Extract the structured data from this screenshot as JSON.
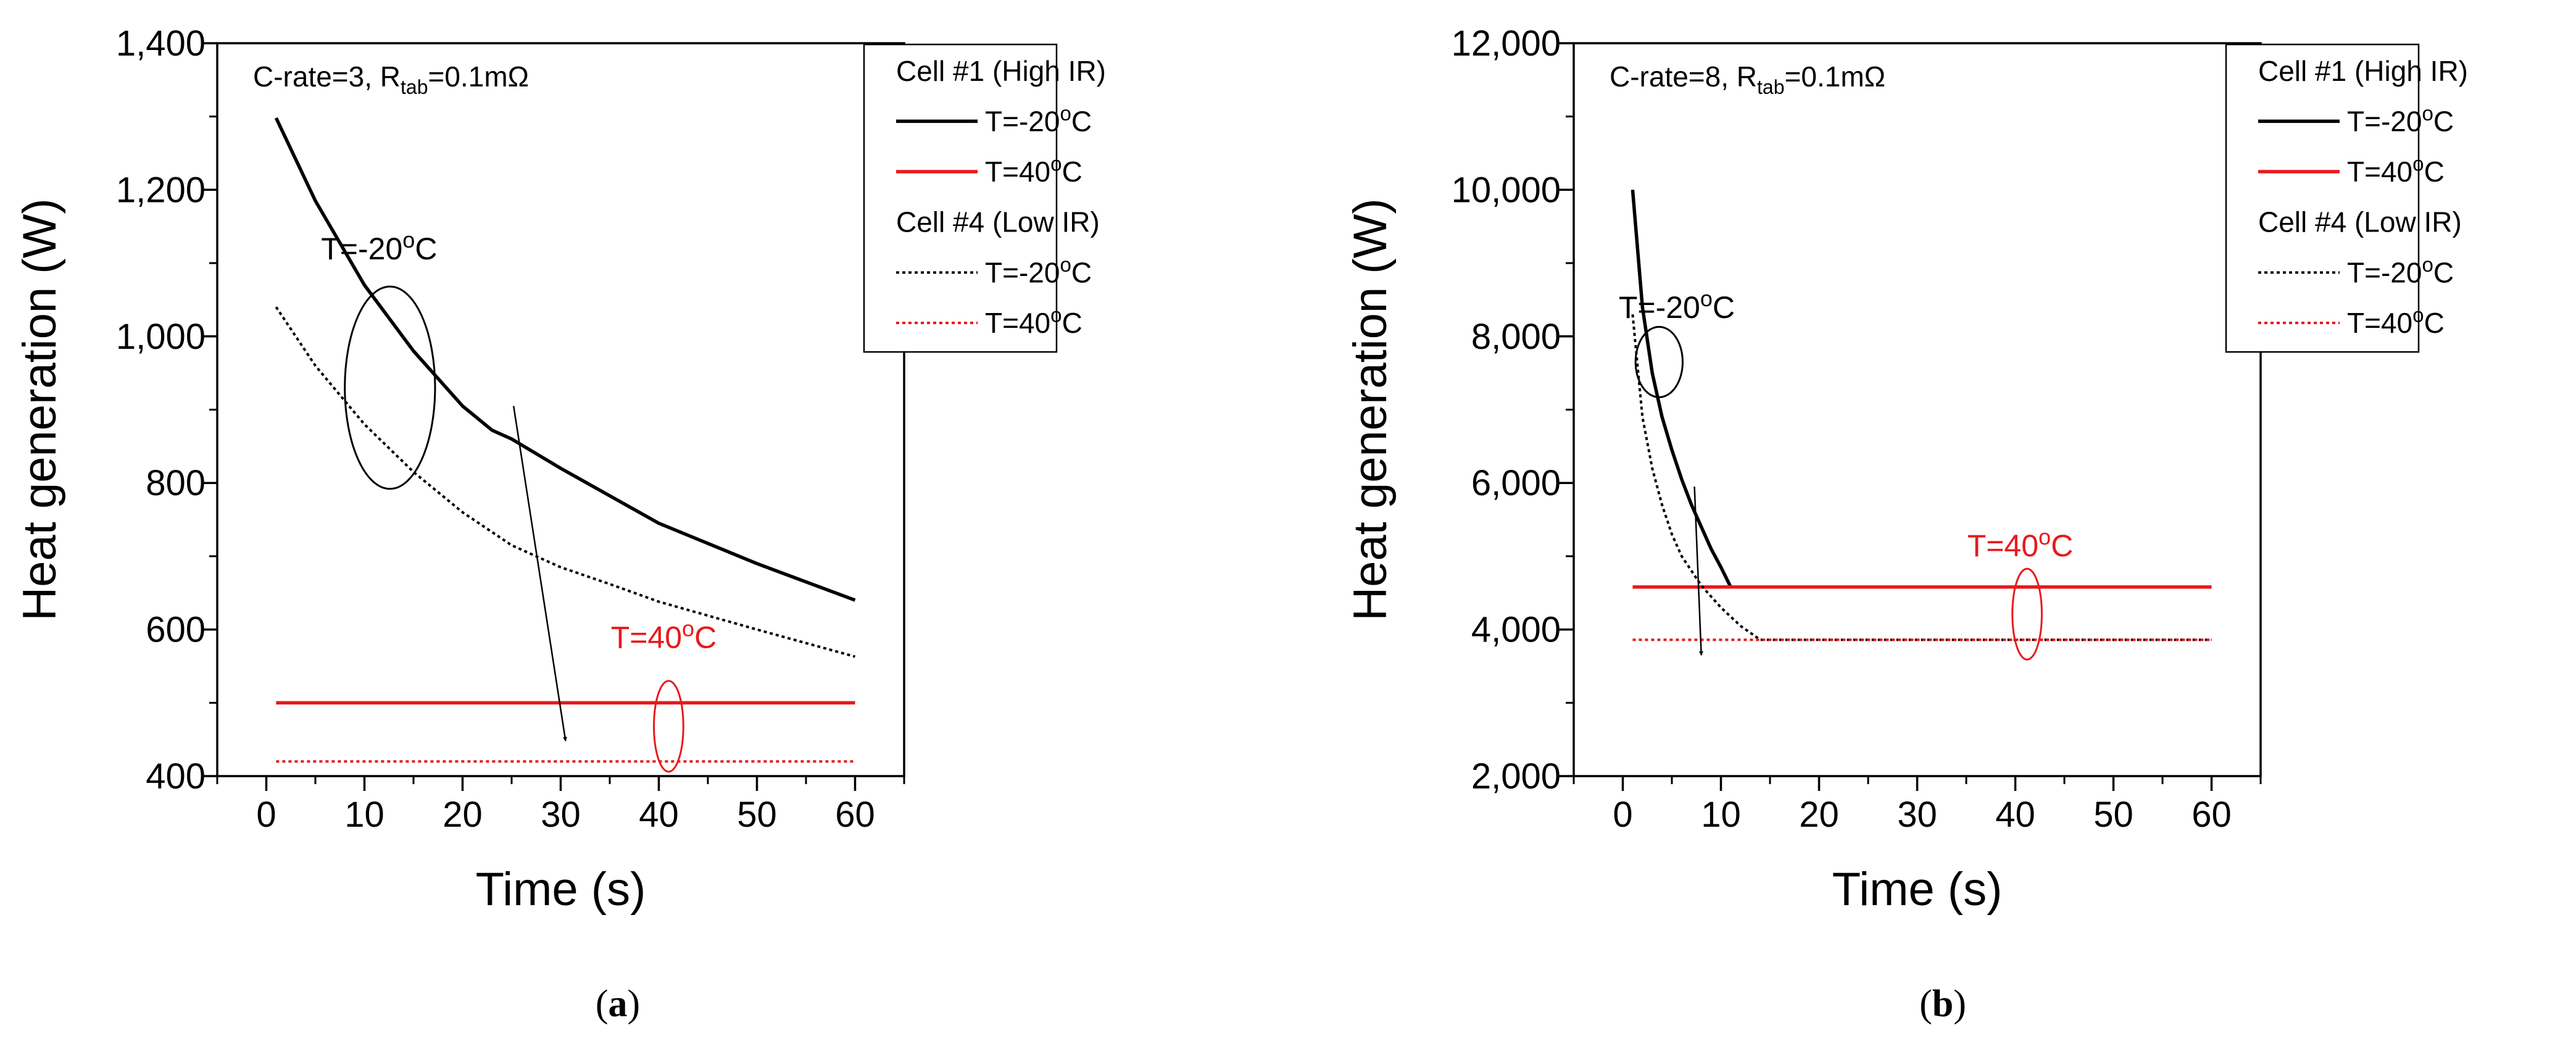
{
  "chart_data": [
    {
      "panel_label": "(a)",
      "panel_label_letter": "a",
      "type": "line",
      "xlabel": "Time (s)",
      "ylabel": "Heat generation (W)",
      "xlim": [
        -5,
        65
      ],
      "ylim": [
        400,
        1400
      ],
      "xticks": [
        0,
        10,
        20,
        30,
        40,
        50,
        60
      ],
      "yticks": [
        400,
        600,
        800,
        1000,
        1200,
        1400
      ],
      "ytick_labels": [
        "400",
        "600",
        "800",
        "1,000",
        "1,200",
        "1,400"
      ],
      "condition": {
        "prefix": "C-rate=3, R",
        "sub": "tab",
        "suffix": "=0.1mΩ"
      },
      "legend": [
        {
          "kind": "header",
          "text": "Cell #1 (High IR)"
        },
        {
          "kind": "entry",
          "series": 0,
          "text": "T=-20",
          "sup": "o",
          "unit": "C"
        },
        {
          "kind": "entry",
          "series": 1,
          "text": "T=40",
          "sup": "o",
          "unit": "C"
        },
        {
          "kind": "header",
          "text": "Cell #4 (Low IR)"
        },
        {
          "kind": "entry",
          "series": 2,
          "text": "T=-20",
          "sup": "o",
          "unit": "C"
        },
        {
          "kind": "entry",
          "series": 3,
          "text": "T=40",
          "sup": "o",
          "unit": "C"
        }
      ],
      "series": [
        {
          "name": "Cell #1 (High IR) T=-20°C",
          "color": "#000000",
          "style": "solid",
          "x": [
            1,
            5,
            10,
            15,
            20,
            23,
            25,
            30,
            40,
            50,
            60
          ],
          "y": [
            1298,
            1185,
            1070,
            980,
            905,
            872,
            860,
            820,
            745,
            690,
            640
          ]
        },
        {
          "name": "Cell #1 (High IR) T=40°C",
          "color": "#e8191c",
          "style": "solid",
          "x": [
            1,
            60
          ],
          "y": [
            500,
            500
          ]
        },
        {
          "name": "Cell #4 (Low IR) T=-20°C",
          "color": "#000000",
          "style": "dotted",
          "x": [
            1,
            5,
            10,
            15,
            20,
            25,
            30,
            35,
            40,
            50,
            60
          ],
          "y": [
            1040,
            960,
            880,
            815,
            760,
            715,
            685,
            662,
            638,
            600,
            563
          ]
        },
        {
          "name": "Cell #4 (Low IR) T=40°C",
          "color": "#e8191c",
          "style": "dotted",
          "x": [
            1,
            60
          ],
          "y": [
            420,
            420
          ]
        }
      ],
      "annotations": [
        {
          "text": "T=-20",
          "sup": "o",
          "unit": "C",
          "color": "#000000",
          "x": 11.5,
          "y": 1105
        },
        {
          "text": "T=40",
          "sup": "o",
          "unit": "C",
          "color": "#e8191c",
          "x": 40.5,
          "y": 575
        }
      ],
      "ellipses": [
        {
          "cx": 12.6,
          "cy": 930,
          "rx": 4.6,
          "ry": 138,
          "color": "#000000"
        },
        {
          "cx": 41,
          "cy": 468,
          "rx": 1.5,
          "ry": 62,
          "color": "#e8191c"
        }
      ],
      "arrows": [
        {
          "from": [
            25.2,
            905
          ],
          "to": [
            30.5,
            448
          ]
        }
      ]
    },
    {
      "panel_label": "(b)",
      "panel_label_letter": "b",
      "type": "line",
      "xlabel": "Time (s)",
      "ylabel": "Heat generation (W)",
      "xlim": [
        -5,
        65
      ],
      "ylim": [
        2000,
        12000
      ],
      "xticks": [
        0,
        10,
        20,
        30,
        40,
        50,
        60
      ],
      "yticks": [
        2000,
        4000,
        6000,
        8000,
        10000,
        12000
      ],
      "ytick_labels": [
        "2,000",
        "4,000",
        "6,000",
        "8,000",
        "10,000",
        "12,000"
      ],
      "condition": {
        "prefix": "C-rate=8, R",
        "sub": "tab",
        "suffix": "=0.1mΩ"
      },
      "legend": [
        {
          "kind": "header",
          "text": "Cell #1 (High IR)"
        },
        {
          "kind": "entry",
          "series": 0,
          "text": "T=-20",
          "sup": "o",
          "unit": "C"
        },
        {
          "kind": "entry",
          "series": 1,
          "text": "T=40",
          "sup": "o",
          "unit": "C"
        },
        {
          "kind": "header",
          "text": "Cell #4 (Low IR)"
        },
        {
          "kind": "entry",
          "series": 2,
          "text": "T=-20",
          "sup": "o",
          "unit": "C"
        },
        {
          "kind": "entry",
          "series": 3,
          "text": "T=40",
          "sup": "o",
          "unit": "C"
        }
      ],
      "series": [
        {
          "name": "Cell #1 (High IR) T=-20°C",
          "color": "#000000",
          "style": "solid",
          "x": [
            1,
            2,
            3,
            4,
            5,
            6,
            7,
            8,
            9,
            10,
            11,
            60
          ],
          "y": [
            10000,
            8400,
            7500,
            6900,
            6450,
            6050,
            5700,
            5400,
            5100,
            4850,
            4580,
            4580
          ]
        },
        {
          "name": "Cell #1 (High IR) T=40°C",
          "color": "#e8191c",
          "style": "solid",
          "x": [
            1,
            60
          ],
          "y": [
            4580,
            4580
          ]
        },
        {
          "name": "Cell #4 (Low IR) T=-20°C",
          "color": "#000000",
          "style": "dotted",
          "x": [
            1,
            2,
            3,
            4,
            5,
            6,
            8,
            10,
            12,
            14,
            60
          ],
          "y": [
            8300,
            6900,
            6200,
            5700,
            5300,
            5000,
            4600,
            4300,
            4050,
            3860,
            3860
          ]
        },
        {
          "name": "Cell #4 (Low IR) T=40°C",
          "color": "#e8191c",
          "style": "dotted",
          "x": [
            1,
            60
          ],
          "y": [
            3860,
            3860
          ]
        }
      ],
      "annotations": [
        {
          "text": "T=-20",
          "sup": "o",
          "unit": "C",
          "color": "#000000",
          "x": 5.5,
          "y": 8250
        },
        {
          "text": "T=40",
          "sup": "o",
          "unit": "C",
          "color": "#e8191c",
          "x": 40.5,
          "y": 5000
        }
      ],
      "ellipses": [
        {
          "cx": 3.7,
          "cy": 7650,
          "rx": 2.4,
          "ry": 480,
          "color": "#000000"
        },
        {
          "cx": 41.2,
          "cy": 4210,
          "rx": 1.5,
          "ry": 620,
          "color": "#e8191c"
        }
      ],
      "arrows": [
        {
          "from": [
            7.3,
            5950
          ],
          "to": [
            8.0,
            3650
          ]
        }
      ]
    }
  ]
}
